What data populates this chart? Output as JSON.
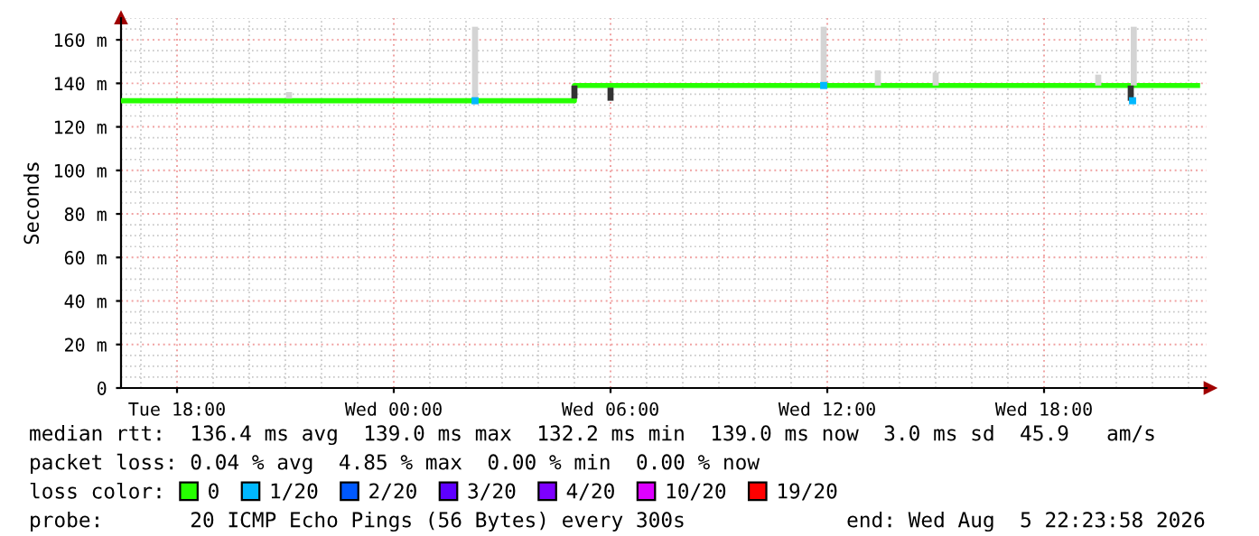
{
  "chart_data": {
    "type": "step",
    "ylabel": "Seconds",
    "xlim": [
      "2026-08-04T16:27",
      "2026-08-05T22:30"
    ],
    "ylim": [
      0,
      170
    ],
    "xticks": [
      {
        "value": "2026-08-04T18:00",
        "label": "Tue 18:00"
      },
      {
        "value": "2026-08-05T00:00",
        "label": "Wed 00:00"
      },
      {
        "value": "2026-08-05T06:00",
        "label": "Wed 06:00"
      },
      {
        "value": "2026-08-05T12:00",
        "label": "Wed 12:00"
      },
      {
        "value": "2026-08-05T18:00",
        "label": "Wed 18:00"
      }
    ],
    "yticks": [
      0,
      {
        "value": 20,
        "label": "20 m"
      },
      {
        "value": 40,
        "label": "40 m"
      },
      {
        "value": 60,
        "label": "60 m"
      },
      {
        "value": 80,
        "label": "80 m"
      },
      {
        "value": 100,
        "label": "100 m"
      },
      {
        "value": 120,
        "label": "120 m"
      },
      {
        "value": 140,
        "label": "140 m"
      },
      {
        "value": 160,
        "label": "160 m"
      }
    ],
    "grid": true,
    "legend": "bottom",
    "series": [
      {
        "type": "bar",
        "color": "#d4d4d4",
        "x": [
          "2026-08-04T21:06",
          "2026-08-05T02:15",
          "2026-08-05T11:54",
          "2026-08-05T13:24",
          "2026-08-05T15:00",
          "2026-08-05T19:30",
          "2026-08-05T20:29"
        ],
        "base": [
          133,
          133,
          139,
          139,
          139,
          139,
          139
        ],
        "values": [
          3,
          33,
          27,
          7,
          6,
          5,
          27
        ]
      },
      {
        "type": "bar",
        "color": "#333333",
        "x": [
          "2026-08-05T05:00",
          "2026-08-05T06:00",
          "2026-08-05T20:24"
        ],
        "base": [
          133,
          132,
          132
        ],
        "values": [
          6,
          6,
          7
        ]
      },
      {
        "name": "0",
        "color": "#26ff00",
        "x": [
          "2026-08-04T16:27",
          "2026-08-05T05:00",
          "2026-08-05T22:15"
        ],
        "values": [
          132,
          139,
          139
        ]
      },
      {
        "name": "1/20",
        "type": "scatter",
        "color": "#00b8ff",
        "x": [
          "2026-08-05T02:15",
          "2026-08-05T11:54",
          "2026-08-05T20:27"
        ],
        "values": [
          132,
          139,
          132
        ]
      },
      {
        "name": "2/20",
        "type": "scatter",
        "color": "#0059ff"
      },
      {
        "name": "3/20",
        "type": "scatter",
        "color": "#5e00ff"
      },
      {
        "name": "4/20",
        "type": "scatter",
        "color": "#7e00ff"
      },
      {
        "name": "10/20",
        "type": "scatter",
        "color": "#dd00ff"
      },
      {
        "name": "19/20",
        "type": "scatter",
        "color": "#ff0000"
      }
    ],
    "annotations": [
      "median rtt:  136.4 ms avg  139.0 ms max  132.2 ms min  139.0 ms now  3.0 ms sd  45.9   am/s",
      "packet loss: 0.04 % avg  4.85 % max  0.00 % min  0.00 % now",
      "loss color:",
      "probe:       20 ICMP Echo Pings (56 Bytes) every 300s             end: Wed Aug  5 22:23:58 2026"
    ]
  }
}
